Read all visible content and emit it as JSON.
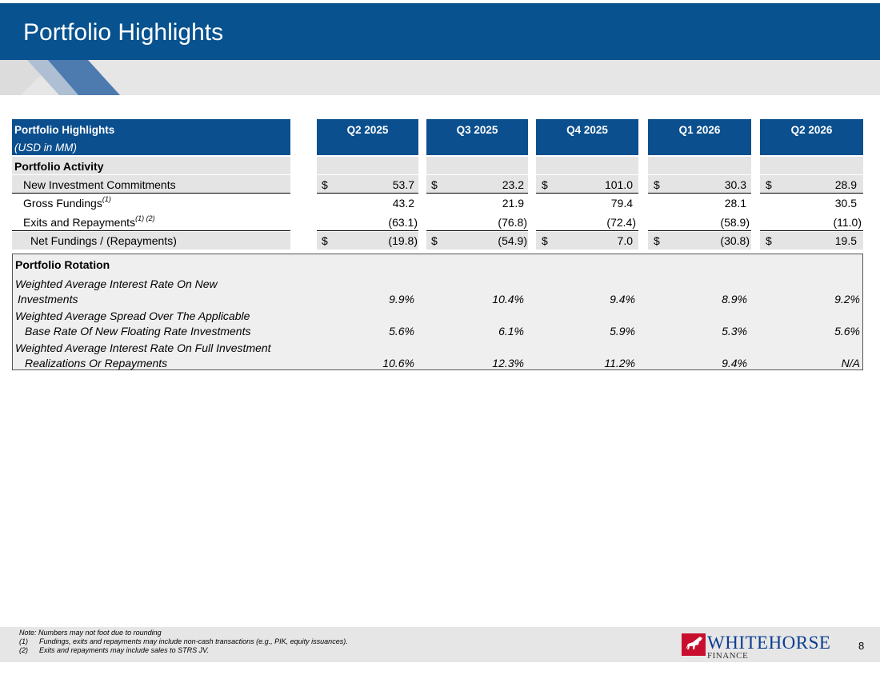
{
  "header": {
    "title": "Portfolio Highlights"
  },
  "table": {
    "title": "Portfolio Highlights",
    "subtitle": "(USD in MM)",
    "periods": [
      "Q2 2025",
      "Q3 2025",
      "Q4 2025",
      "Q1 2026",
      "Q2 2026"
    ],
    "currency_symbol": "$",
    "activity": {
      "section_label": "Portfolio Activity",
      "rows": [
        {
          "label": "New Investment Commitments",
          "footnote": "",
          "values": [
            "53.7",
            "23.2",
            "101.0",
            "30.3",
            "28.9"
          ]
        },
        {
          "label": "Gross Fundings",
          "footnote": "(1)",
          "values": [
            "43.2",
            "21.9",
            "79.4",
            "28.1",
            "30.5"
          ]
        },
        {
          "label": "Exits and Repayments",
          "footnote": "(1) (2)",
          "values": [
            "(63.1)",
            "(76.8)",
            "(72.4)",
            "(58.9)",
            "(11.0)"
          ]
        },
        {
          "label": "Net Fundings / (Repayments)",
          "footnote": "",
          "values": [
            "(19.8)",
            "(54.9)",
            "7.0",
            "(30.8)",
            "19.5"
          ]
        }
      ]
    },
    "rotation": {
      "section_label": "Portfolio Rotation",
      "rows": [
        {
          "label_line1": "Weighted Average Interest Rate On New",
          "label_line2": "Investments",
          "values": [
            "9.9%",
            "10.4%",
            "9.4%",
            "8.9%",
            "9.2%"
          ]
        },
        {
          "label_line1": "Weighted Average Spread Over The Applicable",
          "label_line2": "Base Rate Of New Floating Rate Investments",
          "values": [
            "5.6%",
            "6.1%",
            "5.9%",
            "5.3%",
            "5.6%"
          ]
        },
        {
          "label_line1": "Weighted Average Interest Rate On Full Investment",
          "label_line2": "Realizations Or Repayments",
          "values": [
            "10.6%",
            "12.3%",
            "11.2%",
            "9.4%",
            "N/A"
          ]
        }
      ]
    }
  },
  "footer": {
    "note": "Note: Numbers may not foot due to rounding",
    "fn1_num": "(1)",
    "fn1_text": "Fundings, exits and repayments may include non-cash transactions (e.g., PIK, equity issuances).",
    "fn2_num": "(2)",
    "fn2_text": "Exits and repayments may include sales to STRS JV.",
    "logo_name": "WHITEHORSE",
    "logo_sub": "FINANCE",
    "logo_icon": "horse-icon",
    "page_number": "8"
  },
  "colors": {
    "header_blue": "#07528f",
    "table_header_blue": "#0b4f8e",
    "band_gray": "#e6e6e6",
    "logo_red": "#c8102e",
    "logo_blue": "#0b3d91"
  }
}
